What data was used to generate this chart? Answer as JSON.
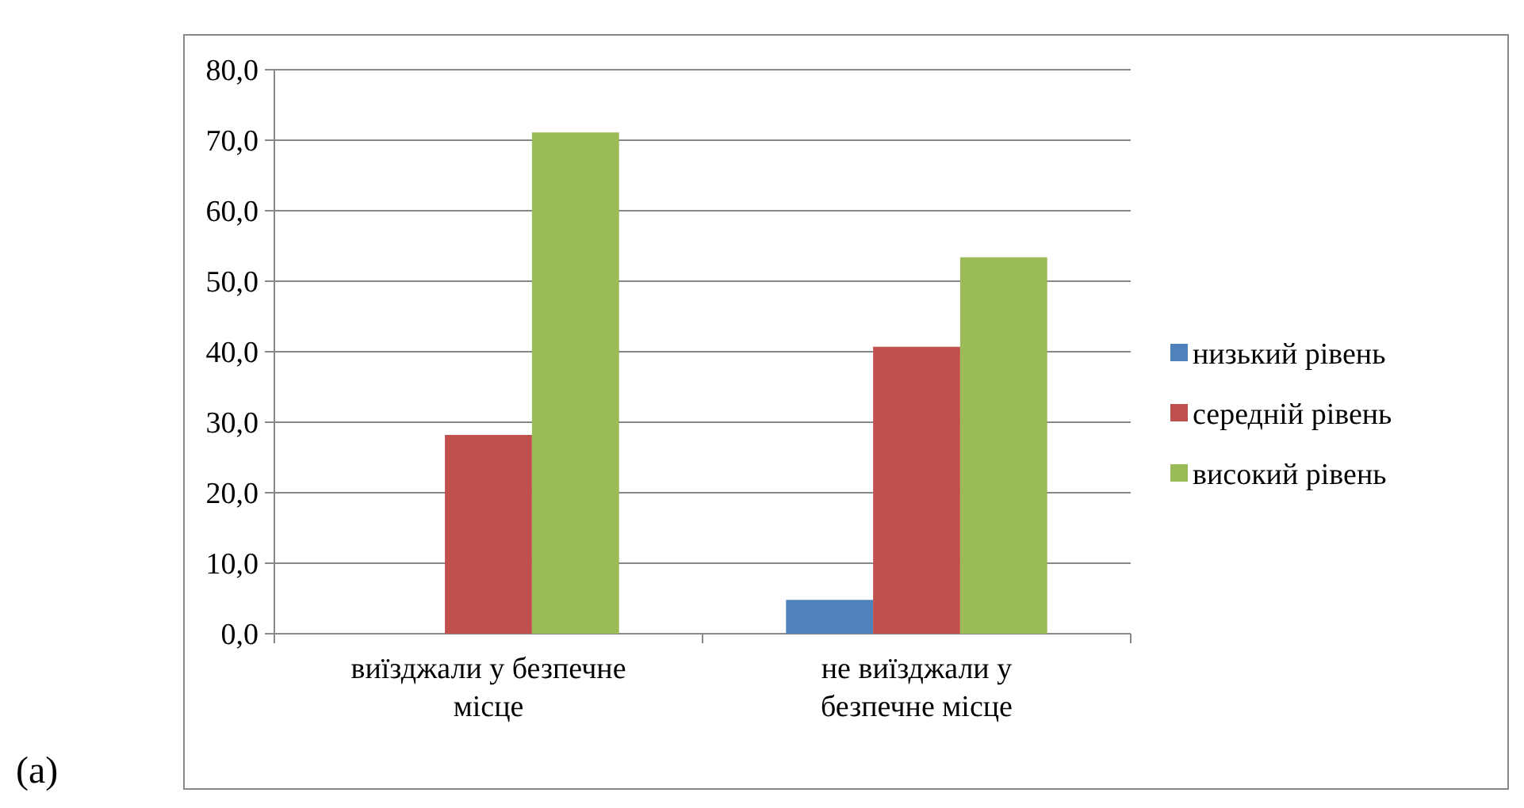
{
  "chart_data": {
    "type": "bar",
    "categories": [
      "виїзджали у безпечне місце",
      "не виїзджали у безпечне місце"
    ],
    "series": [
      {
        "name": "низький рівень",
        "color": "#4f81bd",
        "values": [
          0,
          4.8
        ]
      },
      {
        "name": "середній рівень",
        "color": "#c0504d",
        "values": [
          28.2,
          40.7
        ]
      },
      {
        "name": "високий рівень",
        "color": "#9bbb59",
        "values": [
          71.1,
          53.4
        ]
      }
    ],
    "ylim": [
      0,
      80
    ],
    "yticks": [
      {
        "value": 0,
        "label": "0,0"
      },
      {
        "value": 10,
        "label": "10,0"
      },
      {
        "value": 20,
        "label": "20,0"
      },
      {
        "value": 30,
        "label": "30,0"
      },
      {
        "value": 40,
        "label": "40,0"
      },
      {
        "value": 50,
        "label": "50,0"
      },
      {
        "value": 60,
        "label": "60,0"
      },
      {
        "value": 70,
        "label": "70,0"
      },
      {
        "value": 80,
        "label": "80,0"
      }
    ],
    "grid": "y",
    "legend": "right",
    "annotations": [
      "(a)"
    ]
  }
}
